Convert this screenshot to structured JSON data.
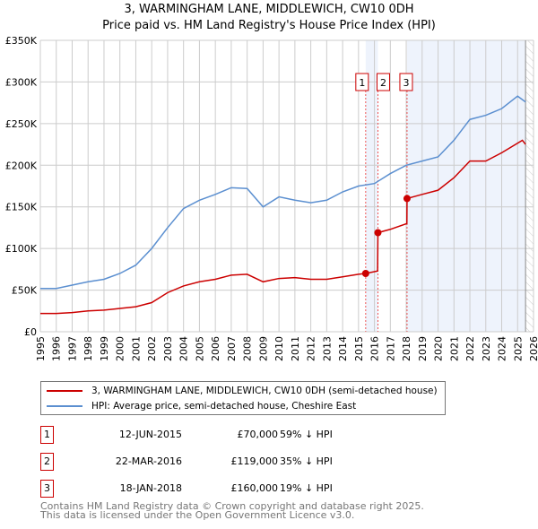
{
  "title_line1": "3, WARMINGHAM LANE, MIDDLEWICH, CW10 0DH",
  "title_line2": "Price paid vs. HM Land Registry's House Price Index (HPI)",
  "chart_data": {
    "type": "line",
    "title": "3, WARMINGHAM LANE, MIDDLEWICH, CW10 0DH - Price paid vs. HM Land Registry's House Price Index (HPI)",
    "xlim": [
      1995,
      2026
    ],
    "ylim": [
      0,
      350000
    ],
    "x_ticks": [
      "1995",
      "1996",
      "1997",
      "1998",
      "1999",
      "2000",
      "2001",
      "2002",
      "2003",
      "2004",
      "2005",
      "2006",
      "2007",
      "2008",
      "2009",
      "2010",
      "2011",
      "2012",
      "2013",
      "2014",
      "2015",
      "2016",
      "2017",
      "2018",
      "2019",
      "2020",
      "2021",
      "2022",
      "2023",
      "2024",
      "2025",
      "2026"
    ],
    "y_ticks": [
      {
        "v": 0,
        "l": "£0"
      },
      {
        "v": 50000,
        "l": "£50K"
      },
      {
        "v": 100000,
        "l": "£100K"
      },
      {
        "v": 150000,
        "l": "£150K"
      },
      {
        "v": 200000,
        "l": "£200K"
      },
      {
        "v": 250000,
        "l": "£250K"
      },
      {
        "v": 300000,
        "l": "£300K"
      },
      {
        "v": 350000,
        "l": "£350K"
      }
    ],
    "grid": true,
    "series": [
      {
        "name": "3, WARMINGHAM LANE, MIDDLEWICH, CW10 0DH (semi-detached house)",
        "color": "#cc0000",
        "x": [
          1995,
          1996,
          1997,
          1998,
          1999,
          2000,
          2001,
          2002,
          2003,
          2004,
          2005,
          2006,
          2007,
          2008,
          2009,
          2010,
          2011,
          2012,
          2013,
          2014,
          2015,
          2015.45,
          2016.2,
          2016.22,
          2017,
          2018.04,
          2018.05,
          2019,
          2020,
          2021,
          2022,
          2023,
          2024,
          2025.3,
          2025.5
        ],
        "y": [
          22000,
          22000,
          23000,
          25000,
          26000,
          28000,
          30000,
          35000,
          47000,
          55000,
          60000,
          63000,
          68000,
          69000,
          60000,
          64000,
          65000,
          63000,
          63000,
          66000,
          69000,
          70000,
          73000,
          119000,
          123000,
          130000,
          160000,
          165000,
          170000,
          185000,
          205000,
          205000,
          215000,
          230000,
          225000
        ]
      },
      {
        "name": "HPI: Average price, semi-detached house, Cheshire East",
        "color": "#5b8fd0",
        "x": [
          1995,
          1996,
          1997,
          1998,
          1999,
          2000,
          2001,
          2002,
          2003,
          2004,
          2005,
          2006,
          2007,
          2008,
          2009,
          2010,
          2011,
          2012,
          2013,
          2014,
          2015,
          2016,
          2017,
          2018,
          2019,
          2020,
          2021,
          2022,
          2023,
          2024,
          2025,
          2025.5
        ],
        "y": [
          52000,
          52000,
          56000,
          60000,
          63000,
          70000,
          80000,
          100000,
          125000,
          148000,
          158000,
          165000,
          173000,
          172000,
          150000,
          162000,
          158000,
          155000,
          158000,
          168000,
          175000,
          178000,
          190000,
          200000,
          205000,
          210000,
          230000,
          255000,
          260000,
          268000,
          283000,
          276000
        ]
      }
    ],
    "sales": [
      {
        "label": "1",
        "x": 2015.45,
        "price": 70000,
        "date": "12-JUN-2015",
        "price_label": "£70,000",
        "hpi": "59% ↓ HPI"
      },
      {
        "label": "2",
        "x": 2016.22,
        "price": 119000,
        "date": "22-MAR-2016",
        "price_label": "£119,000",
        "hpi": "35% ↓ HPI"
      },
      {
        "label": "3",
        "x": 2018.05,
        "price": 160000,
        "date": "18-JAN-2018",
        "price_label": "£160,000",
        "hpi": "19% ↓ HPI"
      }
    ],
    "forecast_start": 2025.5,
    "legend_position": "below"
  },
  "footer_line1": "Contains HM Land Registry data © Crown copyright and database right 2025.",
  "footer_line2": "This data is licensed under the Open Government Licence v3.0."
}
